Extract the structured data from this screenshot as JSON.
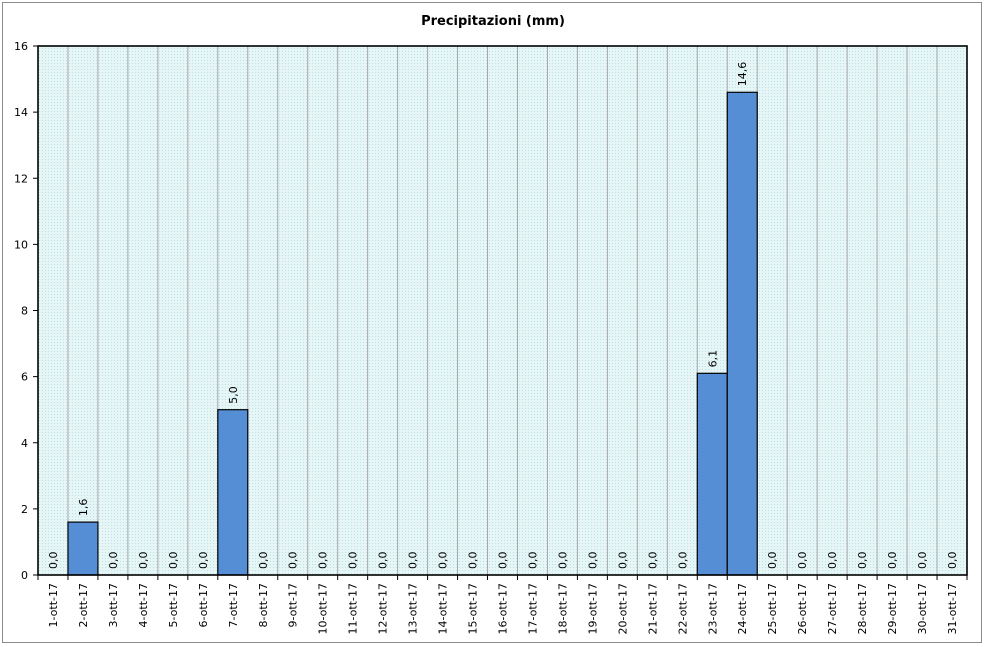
{
  "chart_data": {
    "type": "bar",
    "title": "Precipitazioni (mm)",
    "xlabel": "",
    "ylabel": "",
    "ylim": [
      0,
      16
    ],
    "yticks": [
      0,
      2,
      4,
      6,
      8,
      10,
      12,
      14,
      16
    ],
    "grid": "vertical",
    "legend": "none",
    "categories": [
      "1-ott-17",
      "2-ott-17",
      "3-ott-17",
      "4-ott-17",
      "5-ott-17",
      "6-ott-17",
      "7-ott-17",
      "8-ott-17",
      "9-ott-17",
      "10-ott-17",
      "11-ott-17",
      "12-ott-17",
      "13-ott-17",
      "14-ott-17",
      "15-ott-17",
      "16-ott-17",
      "17-ott-17",
      "18-ott-17",
      "19-ott-17",
      "20-ott-17",
      "21-ott-17",
      "22-ott-17",
      "23-ott-17",
      "24-ott-17",
      "25-ott-17",
      "26-ott-17",
      "27-ott-17",
      "28-ott-17",
      "29-ott-17",
      "30-ott-17",
      "31-ott-17"
    ],
    "values": [
      0.0,
      1.6,
      0.0,
      0.0,
      0.0,
      0.0,
      5.0,
      0.0,
      0.0,
      0.0,
      0.0,
      0.0,
      0.0,
      0.0,
      0.0,
      0.0,
      0.0,
      0.0,
      0.0,
      0.0,
      0.0,
      0.0,
      6.1,
      14.6,
      0.0,
      0.0,
      0.0,
      0.0,
      0.0,
      0.0,
      0.0
    ],
    "value_labels": [
      "0,0",
      "1,6",
      "0,0",
      "0,0",
      "0,0",
      "0,0",
      "5,0",
      "0,0",
      "0,0",
      "0,0",
      "0,0",
      "0,0",
      "0,0",
      "0,0",
      "0,0",
      "0,0",
      "0,0",
      "0,0",
      "0,0",
      "0,0",
      "0,0",
      "0,0",
      "6,1",
      "14,6",
      "0,0",
      "0,0",
      "0,0",
      "0,0",
      "0,0",
      "0,0",
      "0,0"
    ],
    "colors": {
      "bar": "#558ed5",
      "bar_edge": "#000000",
      "plot_bg": "#dff1f1",
      "gridline": "#a6a6a6",
      "axis": "#000000"
    }
  }
}
